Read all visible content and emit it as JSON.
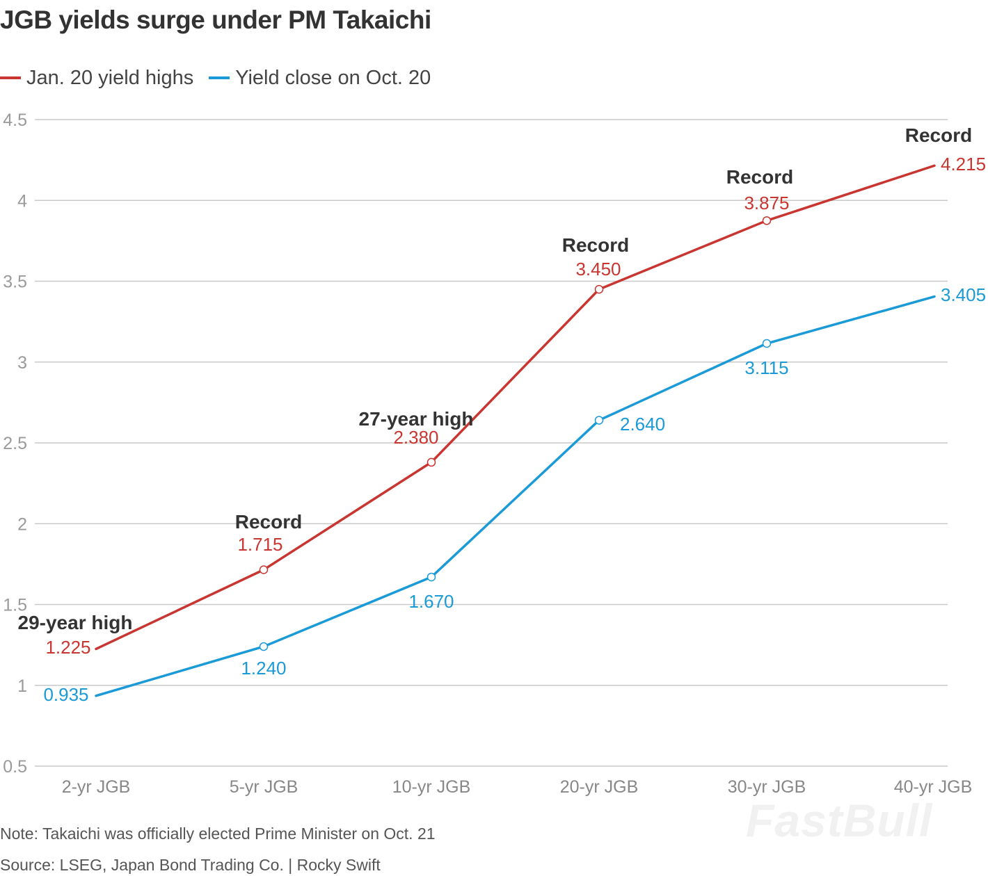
{
  "title": "JGB yields surge under PM Takaichi",
  "note": "Note: Takaichi was officially elected Prime Minister on Oct. 21",
  "source": "Source: LSEG, Japan Bond Trading Co. | Rocky Swift",
  "watermark": "FastBull",
  "colors": {
    "red": "#c93530",
    "blue": "#1a9ad6",
    "grid": "#c9c9c9",
    "axis_text": "#9a9a9a",
    "annotation": "#333333"
  },
  "chart_data": {
    "type": "line",
    "title": "JGB yields surge under PM Takaichi",
    "categories": [
      "2-yr JGB",
      "5-yr JGB",
      "10-yr JGB",
      "20-yr JGB",
      "30-yr JGB",
      "40-yr JGB"
    ],
    "series": [
      {
        "name": "Jan. 20 yield highs",
        "color": "#c93530",
        "values": [
          1.225,
          1.715,
          2.38,
          3.45,
          3.875,
          4.215
        ],
        "labels": [
          "1.225",
          "1.715",
          "2.380",
          "3.450",
          "3.875",
          "4.215"
        ]
      },
      {
        "name": "Yield close on Oct. 20",
        "color": "#1a9ad6",
        "values": [
          0.935,
          1.24,
          1.67,
          2.64,
          3.115,
          3.405
        ],
        "labels": [
          "0.935",
          "1.240",
          "1.670",
          "2.640",
          "3.115",
          "3.405"
        ]
      }
    ],
    "annotations": [
      "29-year high",
      "Record",
      "27-year high",
      "Record",
      "Record",
      "Record"
    ],
    "y_ticks": [
      0.5,
      1,
      1.5,
      2,
      2.5,
      3,
      3.5,
      4,
      4.5
    ],
    "y_tick_labels": [
      "0.5",
      "1",
      "1.5",
      "2",
      "2.5",
      "3",
      "3.5",
      "4",
      "4.5"
    ],
    "ylim": [
      0.5,
      4.5
    ],
    "grid": true,
    "legend_position": "top-left"
  }
}
